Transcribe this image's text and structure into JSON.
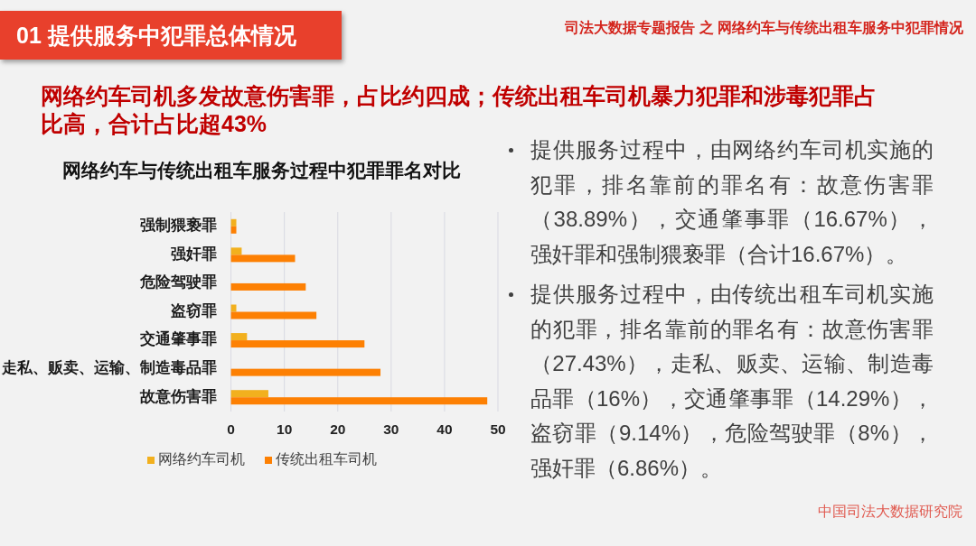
{
  "chart_data": {
    "type": "bar",
    "orientation": "horizontal",
    "title": "网络约车与传统出租车服务过程中犯罪罪名对比",
    "categories": [
      "强制猥亵罪",
      "强奸罪",
      "危险驾驶罪",
      "盗窃罪",
      "交通肇事罪",
      "走私、贩卖、运输、制造毒品罪",
      "故意伤害罪"
    ],
    "series": [
      {
        "name": "网络约车司机",
        "color": "#f2b01e",
        "values": [
          1,
          2,
          null,
          1,
          3,
          null,
          7
        ]
      },
      {
        "name": "传统出租车司机",
        "color": "#fd8003",
        "values": [
          1,
          12,
          14,
          16,
          25,
          28,
          48
        ]
      }
    ],
    "xlim": [
      0,
      50
    ],
    "xticks": [
      0,
      10,
      20,
      30,
      40,
      50
    ],
    "grid": "x",
    "legend": "bottom",
    "annotations": [
      "01 提供服务中犯罪总体情况",
      "司法大数据专题报告 之 网络约车与传统出租车服务中犯罪情况",
      "网络约车司机多发故意伤害罪，占比约四成；传统出租车司机暴力犯罪和涉毒犯罪占比高，合计占比超43%",
      "提供服务过程中，由网络约车司机实施的犯罪，排名靠前的罪名有：故意伤害罪（38.89%），交通肇事罪（16.67%），强奸罪和强制猥亵罪（合计16.67%）。",
      "提供服务过程中，由传统出租车司机实施的犯罪，排名靠前的罪名有：故意伤害罪（27.43%），走私、贩卖、运输、制造毒品罪（16%），交通肇事罪（14.29%），盗窃罪（9.14%），危险驾驶罪（8%），强奸罪（6.86%）。",
      "中国司法大数据研究院"
    ]
  }
}
